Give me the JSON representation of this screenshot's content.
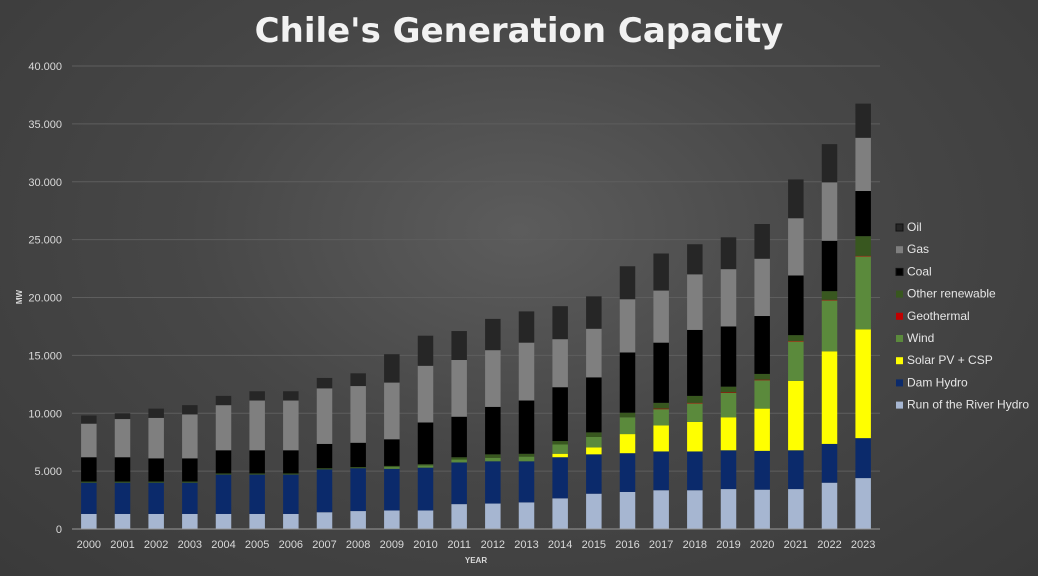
{
  "chart_data": {
    "type": "bar",
    "stacked": true,
    "title": "Chile's Generation Capacity",
    "xlabel": "YEAR",
    "ylabel": "MW",
    "ylim": [
      0,
      40000
    ],
    "yticks": [
      0,
      5000,
      10000,
      15000,
      20000,
      25000,
      30000,
      35000,
      40000
    ],
    "ytick_labels": [
      "0",
      "5.000",
      "10.000",
      "15.000",
      "20.000",
      "25.000",
      "30.000",
      "35.000",
      "40.000"
    ],
    "grid": true,
    "legend_position": "right",
    "categories": [
      "2000",
      "2001",
      "2002",
      "2003",
      "2004",
      "2005",
      "2006",
      "2007",
      "2008",
      "2009",
      "2010",
      "2011",
      "2012",
      "2013",
      "2014",
      "2015",
      "2016",
      "2017",
      "2018",
      "2019",
      "2020",
      "2021",
      "2022",
      "2023"
    ],
    "series": [
      {
        "name": "Run of the River Hydro",
        "color": "#a6b6d1",
        "values": [
          1300,
          1300,
          1300,
          1300,
          1300,
          1300,
          1300,
          1450,
          1550,
          1600,
          1600,
          2150,
          2200,
          2300,
          2650,
          3050,
          3200,
          3350,
          3350,
          3450,
          3400,
          3450,
          4000,
          4400
        ]
      },
      {
        "name": "Dam Hydro",
        "color": "#0b2a6b",
        "values": [
          2700,
          2700,
          2700,
          2700,
          3400,
          3400,
          3400,
          3700,
          3700,
          3600,
          3700,
          3600,
          3650,
          3550,
          3550,
          3400,
          3350,
          3350,
          3350,
          3350,
          3350,
          3350,
          3350,
          3450
        ]
      },
      {
        "name": "Solar PV + CSP",
        "color": "#ffff00",
        "values": [
          0,
          0,
          0,
          0,
          0,
          0,
          0,
          0,
          0,
          0,
          0,
          0,
          0,
          0,
          300,
          600,
          1650,
          2250,
          2550,
          2850,
          3650,
          6000,
          8000,
          9400
        ]
      },
      {
        "name": "Wind",
        "color": "#5b8a3c",
        "values": [
          0,
          0,
          0,
          0,
          0,
          0,
          0,
          0,
          0,
          150,
          200,
          250,
          300,
          400,
          800,
          900,
          1450,
          1400,
          1600,
          2100,
          2450,
          3400,
          4400,
          6300
        ]
      },
      {
        "name": "Geothermal",
        "color": "#c00000",
        "values": [
          0,
          0,
          0,
          0,
          0,
          0,
          0,
          0,
          0,
          0,
          0,
          0,
          0,
          0,
          0,
          0,
          0,
          50,
          50,
          50,
          50,
          50,
          50,
          50
        ]
      },
      {
        "name": "Other renewable",
        "color": "#38571f",
        "values": [
          100,
          100,
          100,
          100,
          100,
          100,
          100,
          100,
          100,
          100,
          100,
          200,
          300,
          250,
          300,
          400,
          400,
          500,
          600,
          500,
          500,
          500,
          750,
          1700
        ]
      },
      {
        "name": "Coal",
        "color": "#000000",
        "values": [
          2100,
          2100,
          2000,
          2000,
          2000,
          2000,
          2000,
          2100,
          2100,
          2300,
          3600,
          3500,
          4100,
          4600,
          4650,
          4750,
          5200,
          5200,
          5700,
          5200,
          5000,
          5150,
          4350,
          3900
        ]
      },
      {
        "name": "Gas",
        "color": "#7f7f7f",
        "values": [
          2900,
          3300,
          3500,
          3800,
          3900,
          4300,
          4300,
          4800,
          4900,
          4900,
          4900,
          4900,
          4900,
          5000,
          4150,
          4200,
          4600,
          4500,
          4800,
          4950,
          4950,
          4950,
          5050,
          4600
        ]
      },
      {
        "name": "Oil",
        "color": "#262626",
        "values": [
          700,
          500,
          800,
          800,
          800,
          800,
          800,
          900,
          1100,
          2450,
          2600,
          2500,
          2700,
          2700,
          2850,
          2800,
          2850,
          3200,
          2600,
          2750,
          3000,
          3350,
          3300,
          2950
        ]
      }
    ]
  }
}
